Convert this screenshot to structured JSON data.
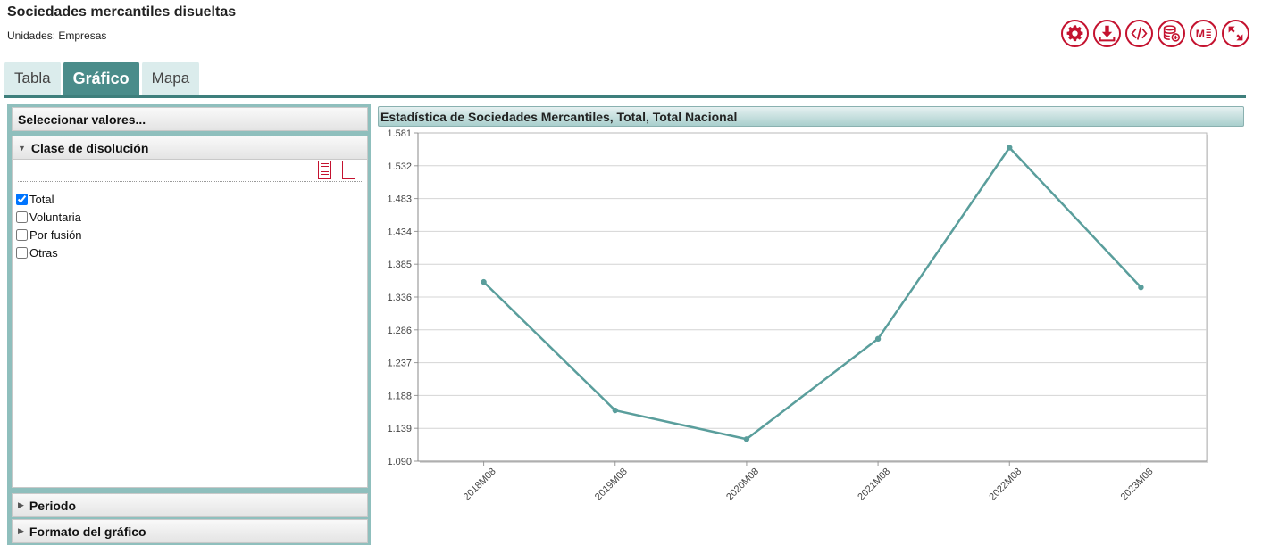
{
  "header": {
    "title": "Sociedades mercantiles disueltas",
    "units": "Unidades:  Empresas"
  },
  "toolbar": [
    {
      "name": "settings-icon",
      "label": "settings"
    },
    {
      "name": "download-icon",
      "label": "download"
    },
    {
      "name": "code-icon",
      "label": "embed"
    },
    {
      "name": "database-add-icon",
      "label": "database"
    },
    {
      "name": "metadata-icon",
      "label": "metadata"
    },
    {
      "name": "expand-icon",
      "label": "expand"
    }
  ],
  "tabs": [
    {
      "label": "Tabla",
      "active": false
    },
    {
      "label": "Gráfico",
      "active": true
    },
    {
      "label": "Mapa",
      "active": false
    }
  ],
  "sidebar": {
    "select_values": "Seleccionar valores...",
    "class_header": "Clase de disolución",
    "options": [
      {
        "label": "Total",
        "checked": true
      },
      {
        "label": "Voluntaria",
        "checked": false
      },
      {
        "label": "Por fusión",
        "checked": false
      },
      {
        "label": "Otras",
        "checked": false
      }
    ],
    "period_header": "Periodo",
    "format_header": "Formato del gráfico"
  },
  "colors": {
    "accent": "#4a8c8a",
    "brand_red": "#c4122f",
    "line": "#5a9e9c"
  },
  "chart_data": {
    "type": "line",
    "title": "Estadística de Sociedades Mercantiles, Total, Total Nacional",
    "categories": [
      "2018M08",
      "2019M08",
      "2020M08",
      "2021M08",
      "2022M08",
      "2023M08"
    ],
    "series": [
      {
        "values": [
          1358,
          1166,
          1123,
          1273,
          1559,
          1350
        ]
      }
    ],
    "yticks": [
      "1.090",
      "1.139",
      "1.188",
      "1.237",
      "1.286",
      "1.336",
      "1.385",
      "1.434",
      "1.483",
      "1.532",
      "1.581"
    ],
    "ylim": [
      1090,
      1581
    ],
    "grid": true
  }
}
